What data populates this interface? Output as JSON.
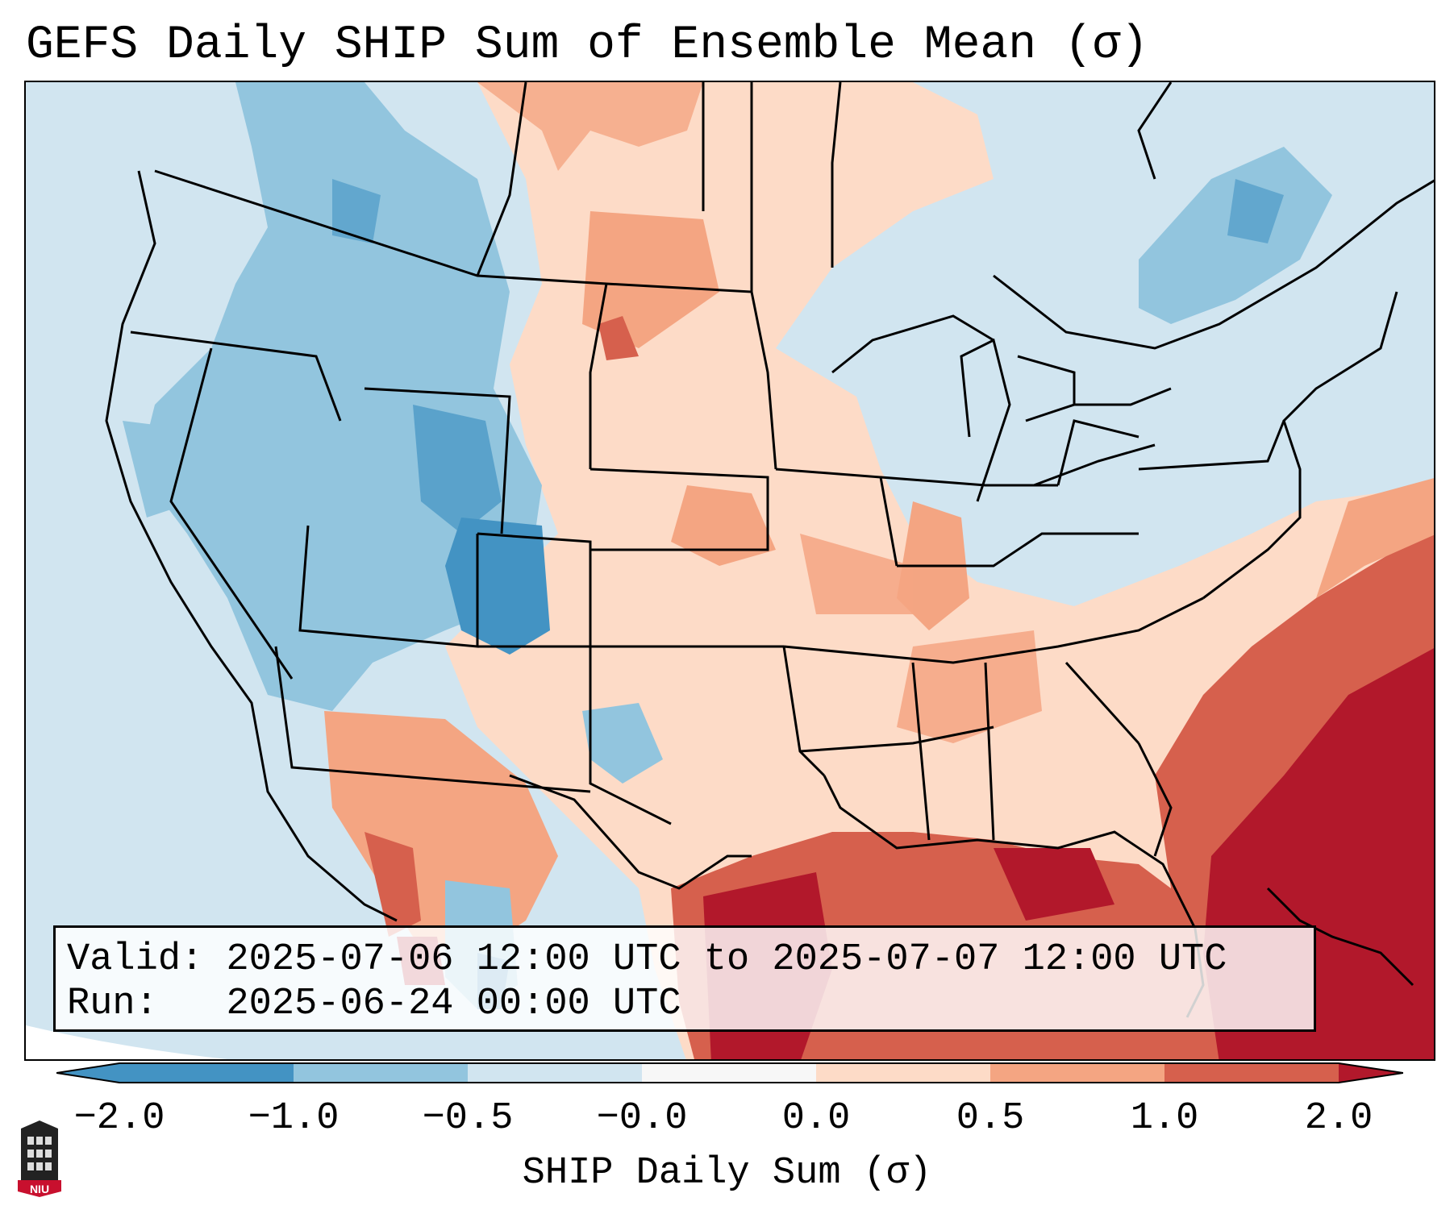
{
  "header": {
    "title": "GEFS Daily SHIP Sum of Ensemble Mean (σ)"
  },
  "info_box": {
    "valid_label": "Valid:",
    "valid_value": "2025-07-06 12:00 UTC to 2025-07-07 12:00 UTC",
    "run_label": "Run:",
    "run_value": "2025-06-24 00:00 UTC"
  },
  "colorbar": {
    "label": "SHIP Daily Sum (σ)",
    "ticks": [
      "−2.0",
      "−1.0",
      "−0.5",
      "−0.0",
      "0.0",
      "0.5",
      "1.0",
      "2.0"
    ],
    "colors": [
      "#4393c3",
      "#92c5de",
      "#d1e5f0",
      "#f7f7f7",
      "#fddbc7",
      "#f4a582",
      "#d6604d",
      "#b2182b"
    ],
    "extend_low_color": "#4393c3",
    "extend_high_color": "#b2182b"
  },
  "logo": {
    "text": "NIU",
    "color": "#c8102e"
  }
}
